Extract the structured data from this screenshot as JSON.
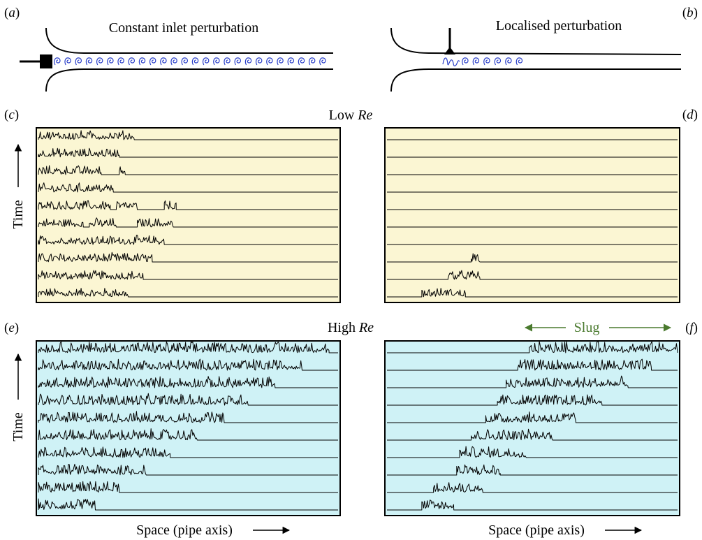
{
  "panel_labels": {
    "a": {
      "open": "(",
      "letter": "a",
      "close": ")"
    },
    "b": {
      "open": "(",
      "letter": "b",
      "close": ")"
    },
    "c": {
      "open": "(",
      "letter": "c",
      "close": ")"
    },
    "d": {
      "open": "(",
      "letter": "d",
      "close": ")"
    },
    "e": {
      "open": "(",
      "letter": "e",
      "close": ")"
    },
    "f": {
      "open": "(",
      "letter": "f",
      "close": ")"
    }
  },
  "schematics": {
    "left_title": "Constant inlet perturbation",
    "right_title": "Localised perturbation"
  },
  "rows": {
    "low": {
      "prefix": "Low ",
      "re": "Re"
    },
    "high": {
      "prefix": "High ",
      "re": "Re"
    }
  },
  "axes": {
    "time_label": "Time",
    "space_label": "Space (pipe axis)"
  },
  "slug_label": "Slug",
  "colors": {
    "low_bg": "#fbf6d3",
    "high_bg": "#cff2f6",
    "slug": "#4a7a2e",
    "eddy": "#2a3fc9"
  },
  "chart_data": [
    {
      "panel": "c",
      "type": "spacetime-traces",
      "regime": "Low Re",
      "perturbation": "Constant inlet perturbation",
      "x_units": "fraction of domain length",
      "traces_bottom_to_top": [
        {
          "segments": [
            [
              0.0,
              0.3
            ]
          ]
        },
        {
          "segments": [
            [
              0.0,
              0.35
            ]
          ]
        },
        {
          "segments": [
            [
              0.0,
              0.38
            ]
          ]
        },
        {
          "segments": [
            [
              0.0,
              0.42
            ]
          ]
        },
        {
          "segments": [
            [
              0.0,
              0.15
            ],
            [
              0.17,
              0.26
            ],
            [
              0.33,
              0.45
            ]
          ]
        },
        {
          "segments": [
            [
              0.0,
              0.24
            ],
            [
              0.26,
              0.33
            ],
            [
              0.42,
              0.46
            ]
          ]
        },
        {
          "segments": [
            [
              0.0,
              0.25
            ]
          ]
        },
        {
          "segments": [
            [
              0.0,
              0.21
            ],
            [
              0.27,
              0.29
            ]
          ]
        },
        {
          "segments": [
            [
              0.0,
              0.27
            ]
          ]
        },
        {
          "segments": [
            [
              0.0,
              0.32
            ]
          ]
        }
      ]
    },
    {
      "panel": "d",
      "type": "spacetime-traces",
      "regime": "Low Re",
      "perturbation": "Localised perturbation",
      "x_units": "fraction of domain length",
      "traces_bottom_to_top": [
        {
          "segments": [
            [
              0.12,
              0.27
            ]
          ]
        },
        {
          "segments": [
            [
              0.21,
              0.32
            ]
          ]
        },
        {
          "segments": [
            [
              0.29,
              0.32
            ]
          ]
        },
        {
          "segments": []
        },
        {
          "segments": []
        },
        {
          "segments": []
        },
        {
          "segments": []
        },
        {
          "segments": []
        },
        {
          "segments": []
        },
        {
          "segments": []
        }
      ]
    },
    {
      "panel": "e",
      "type": "spacetime-traces",
      "regime": "High Re",
      "perturbation": "Constant inlet perturbation",
      "x_units": "fraction of domain length",
      "traces_bottom_to_top": [
        {
          "segments": [
            [
              0.0,
              0.19
            ]
          ]
        },
        {
          "segments": [
            [
              0.0,
              0.27
            ]
          ]
        },
        {
          "segments": [
            [
              0.0,
              0.36
            ]
          ]
        },
        {
          "segments": [
            [
              0.0,
              0.44
            ]
          ]
        },
        {
          "segments": [
            [
              0.0,
              0.53
            ]
          ]
        },
        {
          "segments": [
            [
              0.0,
              0.62
            ]
          ]
        },
        {
          "segments": [
            [
              0.0,
              0.7
            ]
          ]
        },
        {
          "segments": [
            [
              0.0,
              0.79
            ]
          ]
        },
        {
          "segments": [
            [
              0.0,
              0.88
            ]
          ]
        },
        {
          "segments": [
            [
              0.0,
              0.97
            ]
          ]
        }
      ]
    },
    {
      "panel": "f",
      "type": "spacetime-traces",
      "regime": "High Re",
      "perturbation": "Localised perturbation",
      "x_units": "fraction of domain length",
      "traces_bottom_to_top": [
        {
          "segments": [
            [
              0.12,
              0.23
            ]
          ]
        },
        {
          "segments": [
            [
              0.16,
              0.33
            ]
          ]
        },
        {
          "segments": [
            [
              0.24,
              0.39
            ]
          ]
        },
        {
          "segments": [
            [
              0.25,
              0.48
            ]
          ]
        },
        {
          "segments": [
            [
              0.29,
              0.57
            ]
          ]
        },
        {
          "segments": [
            [
              0.34,
              0.65
            ]
          ]
        },
        {
          "segments": [
            [
              0.38,
              0.74
            ]
          ]
        },
        {
          "segments": [
            [
              0.41,
              0.83
            ]
          ]
        },
        {
          "segments": [
            [
              0.45,
              0.91
            ]
          ]
        },
        {
          "segments": [
            [
              0.49,
              1.0
            ]
          ]
        }
      ]
    }
  ]
}
